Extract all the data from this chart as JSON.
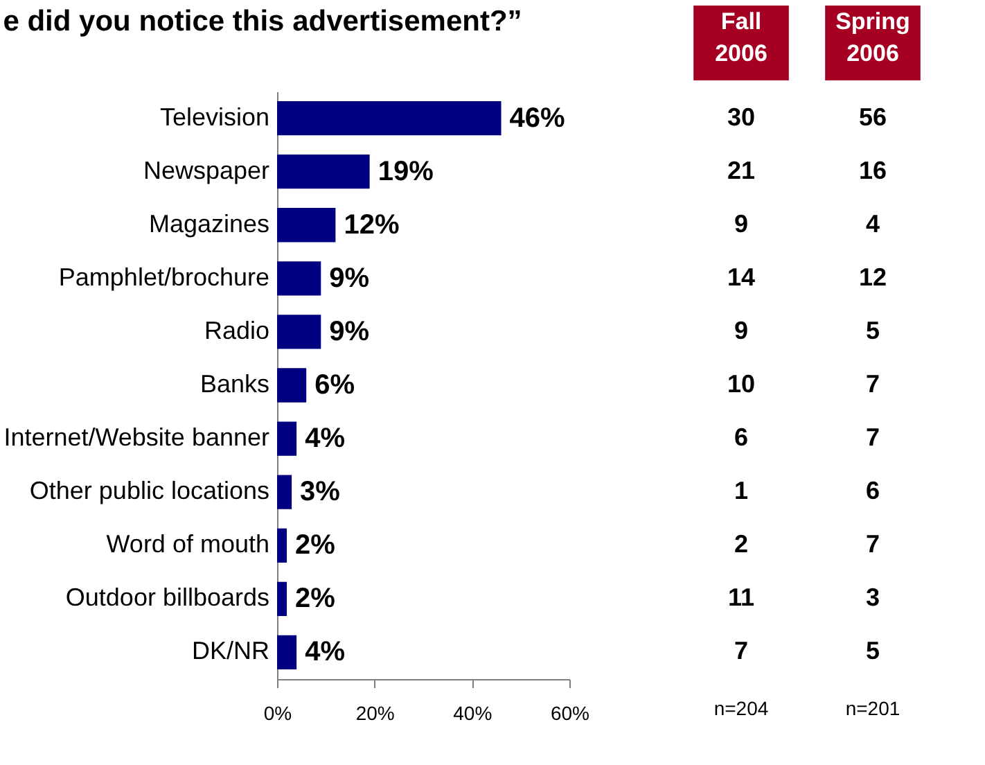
{
  "chart_data": [
    {
      "type": "bar",
      "orientation": "horizontal",
      "title": "e did you notice this advertisement?”",
      "color": "#000080",
      "categories": [
        "Television",
        "Newspaper",
        "Magazines",
        "Pamphlet/brochure",
        "Radio",
        "Banks",
        "Internet/Website banner",
        "Other public locations",
        "Word of mouth",
        "Outdoor billboards",
        "DK/NR"
      ],
      "values": [
        46,
        19,
        12,
        9,
        9,
        6,
        4,
        3,
        2,
        2,
        4
      ],
      "value_labels": [
        "46%",
        "19%",
        "12%",
        "9%",
        "9%",
        "6%",
        "4%",
        "3%",
        "2%",
        "2%",
        "4%"
      ],
      "xlim": [
        0,
        60
      ],
      "xticks": [
        {
          "value": 0,
          "label": "0%"
        },
        {
          "value": 20,
          "label": "20%"
        },
        {
          "value": 40,
          "label": "40%"
        },
        {
          "value": 60,
          "label": "60%"
        }
      ],
      "legend": false
    },
    {
      "type": "other",
      "title": "Fall 2006",
      "color": "#a50021",
      "categories": [
        null,
        null,
        null,
        null,
        null,
        null,
        null,
        null,
        null,
        null,
        null
      ],
      "values": [
        30,
        21,
        9,
        14,
        9,
        10,
        6,
        1,
        2,
        11,
        7
      ],
      "value_labels": [
        "30",
        "21",
        "9",
        "14",
        "9",
        "10",
        "6",
        "1",
        "2",
        "11",
        "7"
      ],
      "annotations": [
        "n=204"
      ]
    },
    {
      "type": "other",
      "title": "Spring 2006",
      "color": "#a50021",
      "categories": [
        null,
        null,
        null,
        null,
        null,
        null,
        null,
        null,
        null,
        null,
        null
      ],
      "values": [
        56,
        16,
        4,
        12,
        5,
        7,
        7,
        6,
        7,
        3,
        5
      ],
      "value_labels": [
        "56",
        "16",
        "4",
        "12",
        "5",
        "7",
        "7",
        "6",
        "7",
        "3",
        "5"
      ],
      "annotations": [
        "n=201"
      ]
    }
  ]
}
